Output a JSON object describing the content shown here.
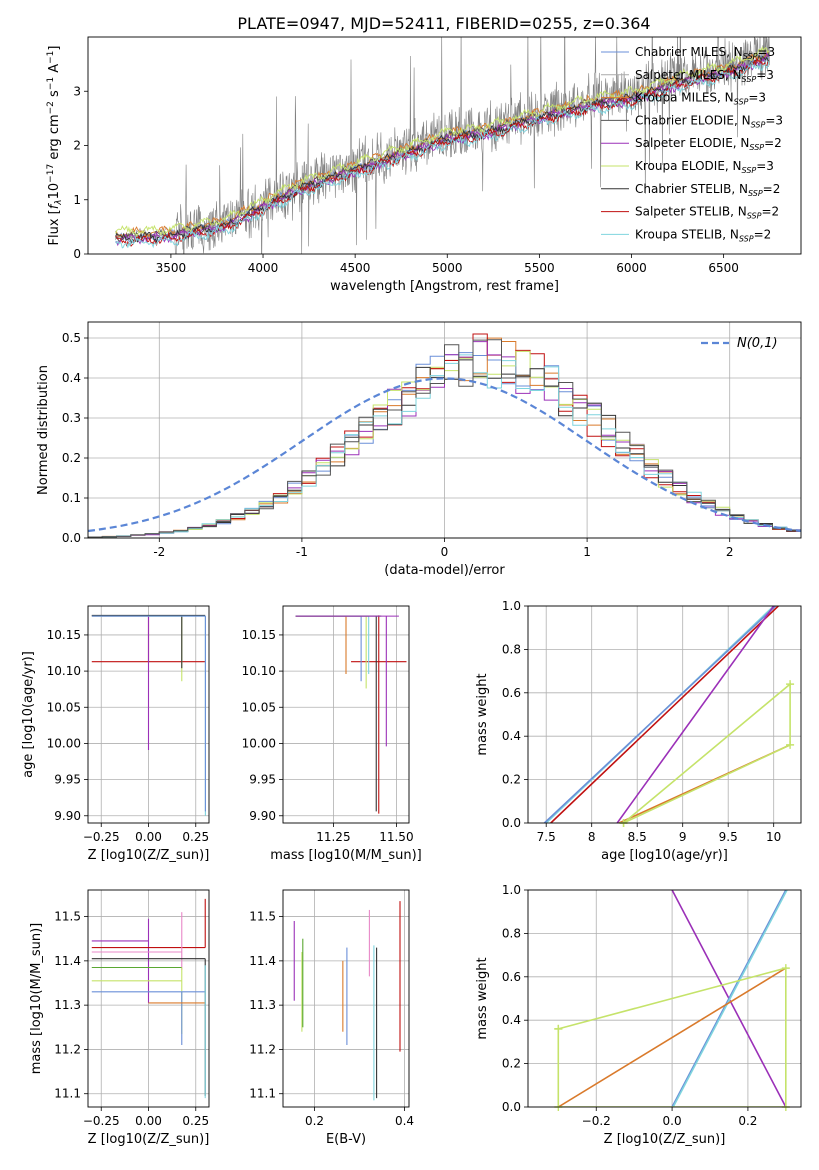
{
  "figure": {
    "title": "PLATE=0947, MJD=52411, FIBERID=0255, z=0.364"
  },
  "colors": {
    "chabrier_miles": "#6a8fd8",
    "salpeter_miles": "#a9a9a9",
    "kroupa_miles": "#d97a2b",
    "chabrier_elodie": "#555555",
    "salpeter_elodie": "#9b30b8",
    "kroupa_elodie": "#c5e36a",
    "chabrier_stelib": "#333333",
    "salpeter_stelib": "#c01010",
    "kroupa_stelib": "#7fd4de",
    "data": "#808080",
    "pink": "#e888c8",
    "green": "#5aa832",
    "normal": "#5b86d6",
    "grid": "#b0b0b0"
  },
  "chart_data": [
    {
      "id": "spectrum",
      "type": "line",
      "xlabel": "wavelength [Angstrom, rest frame]",
      "ylabel": "Flux [f_λ10^-17 erg cm^-2 s^-1 A^-1]",
      "xlim": [
        3050,
        6920
      ],
      "ylim": [
        0,
        4.0
      ],
      "xticks": [
        3500,
        4000,
        4500,
        5000,
        5500,
        6000,
        6500
      ],
      "yticks": [
        0,
        1,
        2,
        3
      ],
      "grid": false,
      "legend_position": "top-right",
      "data_noisy_from": 3520,
      "data_trend": {
        "x": [
          3200,
          3500,
          3800,
          4000,
          4200,
          4500,
          4800,
          5000,
          5200,
          5500,
          5800,
          6000,
          6300,
          6500,
          6750
        ],
        "y": [
          0.3,
          0.35,
          0.55,
          0.9,
          1.25,
          1.6,
          1.95,
          2.2,
          2.3,
          2.6,
          2.85,
          2.95,
          3.3,
          3.45,
          3.75
        ]
      },
      "series": [
        {
          "name": "Chabrier MILES, N_SSP=3",
          "legend": [
            "Chabrier MILES, N",
            "SSP",
            "=3"
          ],
          "color_key": "chabrier_miles",
          "offset": 0.0
        },
        {
          "name": "Salpeter MILES, N_SSP=3",
          "legend": [
            "Salpeter MILES, N",
            "SSP",
            "=3"
          ],
          "color_key": "salpeter_miles",
          "offset": 0.05
        },
        {
          "name": "Kroupa MILES, N_SSP=3",
          "legend": [
            "Kroupa MILES, N",
            "SSP",
            "=3"
          ],
          "color_key": "kroupa_miles",
          "offset": 0.08
        },
        {
          "name": "Chabrier ELODIE, N_SSP=3",
          "legend": [
            "Chabrier ELODIE, N",
            "SSP",
            "=3"
          ],
          "color_key": "chabrier_elodie",
          "offset": 0.02
        },
        {
          "name": "Salpeter ELODIE, N_SSP=2",
          "legend": [
            "Salpeter ELODIE, N",
            "SSP",
            "=2"
          ],
          "color_key": "salpeter_elodie",
          "offset": -0.03
        },
        {
          "name": "Kroupa ELODIE, N_SSP=3",
          "legend": [
            "Kroupa ELODIE, N",
            "SSP",
            "=3"
          ],
          "color_key": "kroupa_elodie",
          "offset": 0.12
        },
        {
          "name": "Chabrier STELIB, N_SSP=2",
          "legend": [
            "Chabrier STELIB, N",
            "SSP",
            "=2"
          ],
          "color_key": "chabrier_stelib",
          "offset": -0.01
        },
        {
          "name": "Salpeter STELIB, N_SSP=2",
          "legend": [
            "Salpeter STELIB, N",
            "SSP",
            "=2"
          ],
          "color_key": "salpeter_stelib",
          "offset": -0.06
        },
        {
          "name": "Kroupa STELIB, N_SSP=2",
          "legend": [
            "Kroupa STELIB, N",
            "SSP",
            "=2"
          ],
          "color_key": "kroupa_stelib",
          "offset": -0.1
        }
      ]
    },
    {
      "id": "residuals",
      "type": "histogram",
      "xlabel": "(data-model)/error",
      "ylabel": "Normed distribution",
      "xlim": [
        -2.5,
        2.5
      ],
      "ylim": [
        0,
        0.54
      ],
      "xticks": [
        -2,
        -1,
        0,
        1,
        2
      ],
      "yticks": [
        0.0,
        0.1,
        0.2,
        0.3,
        0.4,
        0.5
      ],
      "grid": true,
      "legend_position": "top-right",
      "normal_label": "N(0,1)",
      "bin_width": 0.1,
      "series_colors": [
        "chabrier_miles",
        "kroupa_miles",
        "salpeter_stelib",
        "salpeter_elodie",
        "kroupa_elodie",
        "chabrier_stelib",
        "kroupa_stelib",
        "chabrier_elodie"
      ],
      "peak": 0.44,
      "mean": 0.3,
      "sigma": 0.85
    },
    {
      "id": "age-vs-Z",
      "type": "errorbar",
      "xlabel": "Z [log10(Z/Z_sun)]",
      "ylabel": "age [log10(age/yr)]",
      "xlim": [
        -0.32,
        0.32
      ],
      "ylim": [
        9.89,
        10.19
      ],
      "xticks": [
        -0.25,
        0.0,
        0.25
      ],
      "xticklabels": [
        "−0.25",
        "0.00",
        "0.25"
      ],
      "yticks": [
        9.9,
        9.95,
        10.0,
        10.05,
        10.1,
        10.15
      ],
      "grid": true,
      "points": [
        {
          "color_key": "salpeter_stelib",
          "x": 0.0,
          "xerr": [
            0.3,
            0.3
          ],
          "y": 10.113,
          "yerr": [
            0,
            0.064
          ]
        },
        {
          "color_key": "salpeter_elodie",
          "x": 0.0,
          "xerr": [
            0.3,
            0.0
          ],
          "y": 10.176,
          "yerr": [
            0.185,
            0
          ]
        },
        {
          "color_key": "kroupa_elodie",
          "x": 0.176,
          "xerr": [
            0.476,
            0.0
          ],
          "y": 10.176,
          "yerr": [
            0.09,
            0
          ]
        },
        {
          "color_key": "chabrier_stelib",
          "x": 0.176,
          "xerr": [
            0.476,
            0.124
          ],
          "y": 10.177,
          "yerr": [
            0.073,
            0
          ]
        },
        {
          "color_key": "kroupa_stelib",
          "x": 0.301,
          "xerr": [
            0.6,
            0.0
          ],
          "y": 10.176,
          "yerr": [
            0.276,
            0
          ]
        },
        {
          "color_key": "chabrier_miles",
          "x": 0.301,
          "xerr": [
            0.6,
            0.0
          ],
          "y": 10.176,
          "yerr": [
            0.27,
            0
          ]
        }
      ]
    },
    {
      "id": "age-vs-mass",
      "type": "errorbar",
      "xlabel": "mass [log10(M/M_sun)]",
      "ylabel": "",
      "xlim": [
        11.05,
        11.55
      ],
      "ylim": [
        9.89,
        10.19
      ],
      "xticks": [
        11.25,
        11.5
      ],
      "xticklabels": [
        "11.25",
        "11.50"
      ],
      "yticks": [
        9.9,
        9.95,
        10.0,
        10.05,
        10.1,
        10.15
      ],
      "grid": true,
      "points": [
        {
          "color_key": "salpeter_stelib",
          "x": 11.43,
          "xerr": [
            0.11,
            0.11
          ],
          "y": 10.113,
          "yerr": [
            0.21,
            0.064
          ]
        },
        {
          "color_key": "chabrier_miles",
          "x": 11.36,
          "xerr": [
            0.26,
            0.0
          ],
          "y": 10.176,
          "yerr": [
            0.09,
            0
          ]
        },
        {
          "color_key": "kroupa_miles",
          "x": 11.3,
          "xerr": [
            0.2,
            0.0
          ],
          "y": 10.176,
          "yerr": [
            0.08,
            0
          ]
        },
        {
          "color_key": "kroupa_elodie",
          "x": 11.38,
          "xerr": [
            0.28,
            0.0
          ],
          "y": 10.176,
          "yerr": [
            0.1,
            0
          ]
        },
        {
          "color_key": "kroupa_stelib",
          "x": 11.39,
          "xerr": [
            0.29,
            0.0
          ],
          "y": 10.176,
          "yerr": [
            0.08,
            0
          ]
        },
        {
          "color_key": "chabrier_stelib",
          "x": 11.42,
          "xerr": [
            0.32,
            0.02
          ],
          "y": 10.176,
          "yerr": [
            0.27,
            0
          ]
        },
        {
          "color_key": "salpeter_elodie",
          "x": 11.46,
          "xerr": [
            0.36,
            0.05
          ],
          "y": 10.176,
          "yerr": [
            0.18,
            0
          ]
        }
      ]
    },
    {
      "id": "weight-vs-age",
      "type": "line",
      "xlabel": "age [log10(age/yr)]",
      "ylabel": "mass weight",
      "xlim": [
        7.3,
        10.3
      ],
      "ylim": [
        0,
        1.0
      ],
      "xticks": [
        7.5,
        8.0,
        8.5,
        9.0,
        9.5,
        10.0
      ],
      "yticks": [
        0.0,
        0.2,
        0.4,
        0.6,
        0.8,
        1.0
      ],
      "grid": true,
      "series": [
        {
          "color_key": "salpeter_stelib",
          "x": [
            7.55,
            10.05
          ],
          "y": [
            0.0,
            1.0
          ]
        },
        {
          "color_key": "kroupa_stelib",
          "x": [
            7.5,
            10.0
          ],
          "y": [
            0.0,
            1.0
          ]
        },
        {
          "color_key": "chabrier_miles",
          "x": [
            7.48,
            10.02
          ],
          "y": [
            0.0,
            1.0
          ]
        },
        {
          "color_key": "salpeter_elodie",
          "x": [
            8.28,
            10.0
          ],
          "y": [
            0.0,
            1.0
          ]
        },
        {
          "color_key": "kroupa_miles",
          "x": [
            8.3,
            10.18
          ],
          "y": [
            0.0,
            0.36
          ]
        },
        {
          "color_key": "kroupa_elodie",
          "x": [
            8.35,
            10.18,
            10.18,
            8.35
          ],
          "y": [
            0.0,
            0.64,
            0.36,
            0.0
          ],
          "markers": true
        }
      ]
    },
    {
      "id": "mass-vs-Z",
      "type": "errorbar",
      "xlabel": "Z [log10(Z/Z_sun)]",
      "ylabel": "mass [log10(M/M_sun)]",
      "xlim": [
        -0.32,
        0.32
      ],
      "ylim": [
        11.07,
        11.56
      ],
      "xticks": [
        -0.25,
        0.0,
        0.25
      ],
      "xticklabels": [
        "−0.25",
        "0.00",
        "0.25"
      ],
      "yticks": [
        11.1,
        11.2,
        11.3,
        11.4,
        11.5
      ],
      "grid": true,
      "points": [
        {
          "color_key": "salpeter_elodie",
          "x": 0.0,
          "xerr": [
            0.3,
            0.0
          ],
          "y": 11.445,
          "yerr": [
            0.14,
            0.05
          ]
        },
        {
          "color_key": "salpeter_stelib",
          "x": 0.3,
          "xerr": [
            0.6,
            0.0
          ],
          "y": 11.43,
          "yerr": [
            0,
            0.11
          ]
        },
        {
          "color_key": "pink",
          "x": 0.176,
          "xerr": [
            0.476,
            0.0
          ],
          "y": 11.42,
          "yerr": [
            0.04,
            0.09
          ]
        },
        {
          "color_key": "chabrier_stelib",
          "x": 0.3,
          "xerr": [
            0.6,
            0.0
          ],
          "y": 11.405,
          "yerr": [
            0.31,
            0
          ]
        },
        {
          "color_key": "green",
          "x": 0.176,
          "xerr": [
            0.476,
            0.0
          ],
          "y": 11.385,
          "yerr": [
            0,
            0
          ]
        },
        {
          "color_key": "kroupa_elodie",
          "x": 0.176,
          "xerr": [
            0.476,
            0.0
          ],
          "y": 11.355,
          "yerr": [
            0.12,
            0.03
          ]
        },
        {
          "color_key": "chabrier_miles",
          "x": 0.176,
          "xerr": [
            0.476,
            0.124
          ],
          "y": 11.33,
          "yerr": [
            0.12,
            0
          ]
        },
        {
          "color_key": "kroupa_miles",
          "x": 0.0,
          "xerr": [
            0.0,
            0.3
          ],
          "y": 11.305,
          "yerr": [
            0,
            0
          ]
        },
        {
          "color_key": "kroupa_stelib",
          "x": 0.3,
          "xerr": [
            0.0,
            0.0
          ],
          "y": 11.33,
          "yerr": [
            0.24,
            0.06
          ]
        }
      ]
    },
    {
      "id": "mass-vs-EBV",
      "type": "errorbar",
      "xlabel": "E(B-V)",
      "ylabel": "",
      "xlim": [
        0.13,
        0.41
      ],
      "ylim": [
        11.07,
        11.56
      ],
      "xticks": [
        0.2,
        0.4
      ],
      "xticklabels": [
        "0.2",
        "0.4"
      ],
      "yticks": [
        11.1,
        11.2,
        11.3,
        11.4,
        11.5
      ],
      "grid": true,
      "points": [
        {
          "color_key": "salpeter_elodie",
          "x": 0.155,
          "xerr": [
            0,
            0
          ],
          "y": 11.4,
          "yerr": [
            0.09,
            0.09
          ]
        },
        {
          "color_key": "kroupa_elodie",
          "x": 0.172,
          "xerr": [
            0,
            0
          ],
          "y": 11.33,
          "yerr": [
            0.09,
            0.09
          ]
        },
        {
          "color_key": "green",
          "x": 0.174,
          "xerr": [
            0,
            0
          ],
          "y": 11.35,
          "yerr": [
            0.1,
            0.1
          ]
        },
        {
          "color_key": "kroupa_miles",
          "x": 0.263,
          "xerr": [
            0,
            0
          ],
          "y": 11.32,
          "yerr": [
            0.08,
            0.08
          ]
        },
        {
          "color_key": "chabrier_miles",
          "x": 0.272,
          "xerr": [
            0,
            0
          ],
          "y": 11.32,
          "yerr": [
            0.11,
            0.11
          ]
        },
        {
          "color_key": "pink",
          "x": 0.322,
          "xerr": [
            0,
            0
          ],
          "y": 11.44,
          "yerr": [
            0.075,
            0.075
          ]
        },
        {
          "color_key": "kroupa_stelib",
          "x": 0.332,
          "xerr": [
            0,
            0
          ],
          "y": 11.26,
          "yerr": [
            0.175,
            0.175
          ]
        },
        {
          "color_key": "chabrier_stelib",
          "x": 0.338,
          "xerr": [
            0,
            0
          ],
          "y": 11.26,
          "yerr": [
            0.17,
            0.17
          ]
        },
        {
          "color_key": "salpeter_stelib",
          "x": 0.39,
          "xerr": [
            0,
            0
          ],
          "y": 11.365,
          "yerr": [
            0.17,
            0.17
          ]
        }
      ]
    },
    {
      "id": "weight-vs-Z",
      "type": "line",
      "xlabel": "Z [log10(Z/Z_sun)]",
      "ylabel": "mass weight",
      "xlim": [
        -0.38,
        0.34
      ],
      "ylim": [
        0,
        1.0
      ],
      "xticks": [
        -0.2,
        0.0,
        0.2
      ],
      "xticklabels": [
        "−0.2",
        "0.0",
        "0.2"
      ],
      "yticks": [
        0.0,
        0.2,
        0.4,
        0.6,
        0.8,
        1.0
      ],
      "grid": true,
      "series": [
        {
          "color_key": "salpeter_elodie",
          "x": [
            0.0,
            0.3
          ],
          "y": [
            1.0,
            0.0
          ]
        },
        {
          "color_key": "chabrier_miles",
          "x": [
            0.0,
            0.3
          ],
          "y": [
            0.0,
            1.0
          ]
        },
        {
          "color_key": "kroupa_stelib",
          "x": [
            0.003,
            0.303
          ],
          "y": [
            0.0,
            1.0
          ]
        },
        {
          "color_key": "kroupa_miles",
          "x": [
            -0.3,
            0.3
          ],
          "y": [
            0.0,
            0.64
          ]
        },
        {
          "color_key": "kroupa_elodie",
          "x": [
            -0.3,
            0.3,
            0.3,
            -0.3,
            -0.3
          ],
          "y": [
            0.36,
            0.64,
            0.0,
            0.0,
            0.36
          ],
          "markers": true
        }
      ]
    }
  ]
}
